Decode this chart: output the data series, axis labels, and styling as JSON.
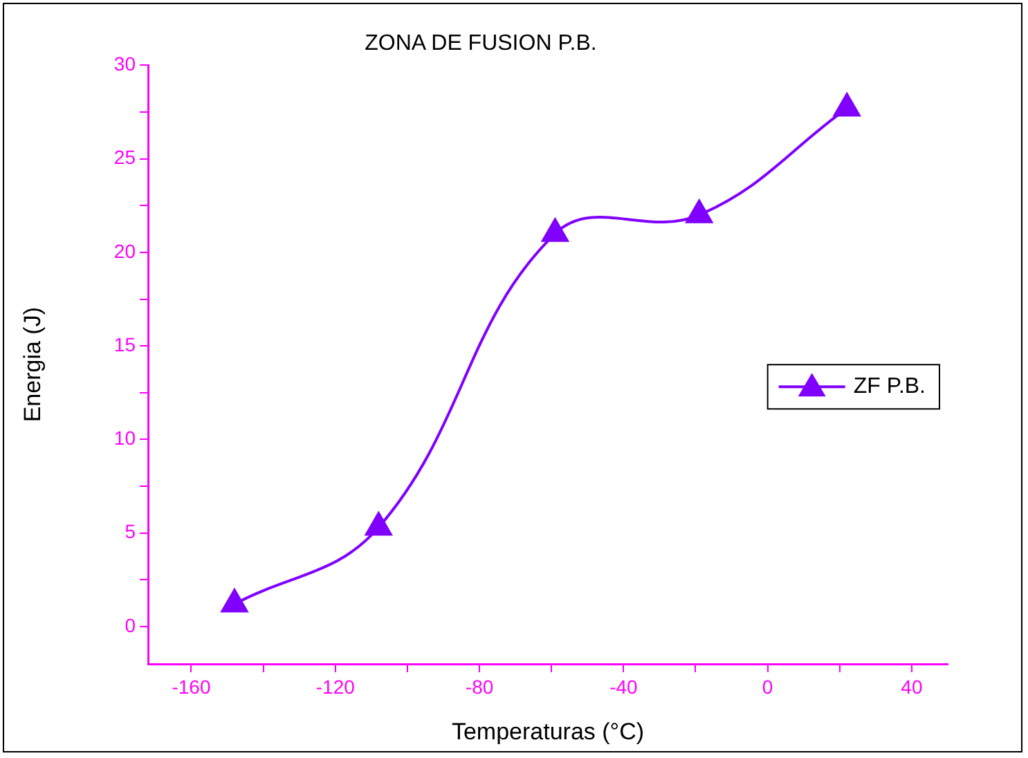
{
  "chart_data": {
    "type": "line",
    "title": "ZONA DE FUSION P.B.",
    "xlabel": "Temperaturas (°C)",
    "ylabel": "Energia (J)",
    "x": [
      -148,
      -108,
      -59,
      -19,
      22
    ],
    "series": [
      {
        "name": "ZF P.B.",
        "color": "#8000ff",
        "values": [
          1.2,
          5.3,
          21,
          22,
          27.7
        ]
      }
    ],
    "xlim": [
      -172,
      50
    ],
    "xticks": [
      -160,
      {
        "value": -140,
        "label": null
      },
      -120,
      {
        "value": -100,
        "label": null
      },
      -80,
      {
        "value": -60,
        "label": null
      },
      -40,
      {
        "value": -20,
        "label": null
      },
      0,
      {
        "value": 20,
        "label": null
      },
      40
    ],
    "ylim": [
      -2,
      30
    ],
    "yticks": [
      0,
      {
        "value": 2.5,
        "label": null
      },
      5,
      {
        "value": 7.5,
        "label": null
      },
      10,
      {
        "value": 12.5,
        "label": null
      },
      15,
      {
        "value": 17.5,
        "label": null
      },
      20,
      {
        "value": 22.5,
        "label": null
      },
      25,
      {
        "value": 27.5,
        "label": null
      },
      30
    ],
    "grid": false,
    "legend": "right",
    "marker": "triangle",
    "line_style": "solid"
  }
}
